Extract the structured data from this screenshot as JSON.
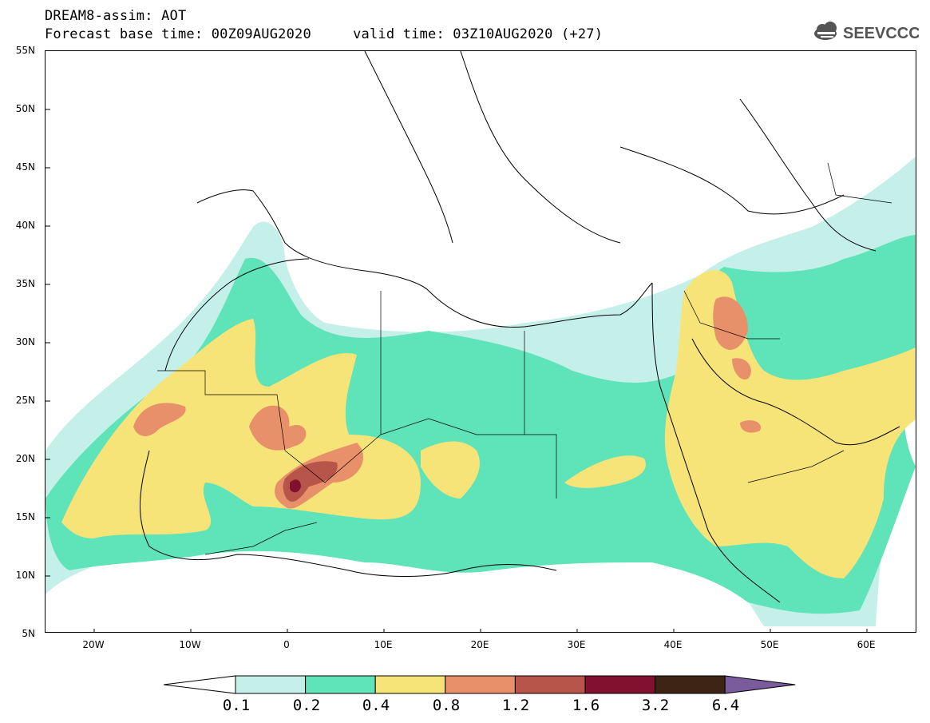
{
  "header": {
    "title_line1": "DREAM8-assim: AOT",
    "title_line2": "Forecast base time: 00Z09AUG2020     valid time: 03Z10AUG2020 (+27)"
  },
  "logo": {
    "text": "SEEVCCC",
    "icon": "cloud-logo-icon"
  },
  "map": {
    "lat_labels": [
      "55N",
      "50N",
      "45N",
      "40N",
      "35N",
      "30N",
      "25N",
      "20N",
      "15N",
      "10N",
      "5N"
    ],
    "lon_labels": [
      "20W",
      "10W",
      "0",
      "10E",
      "20E",
      "30E",
      "40E",
      "50E",
      "60E"
    ]
  },
  "legend": {
    "labels": [
      "0.1",
      "0.2",
      "0.4",
      "0.8",
      "1.2",
      "1.6",
      "3.2",
      "6.4"
    ],
    "colors": [
      "#ffffff",
      "#c4f0e9",
      "#5fe3b8",
      "#f7e479",
      "#e8906a",
      "#b8554a",
      "#82102f",
      "#3d2415",
      "#7a5c9c"
    ]
  },
  "colors": {
    "c1": "#c4f0e9",
    "c2": "#5fe3b8",
    "c3": "#f7e479",
    "c4": "#e8906a",
    "c5": "#b8554a",
    "c6": "#82102f"
  }
}
